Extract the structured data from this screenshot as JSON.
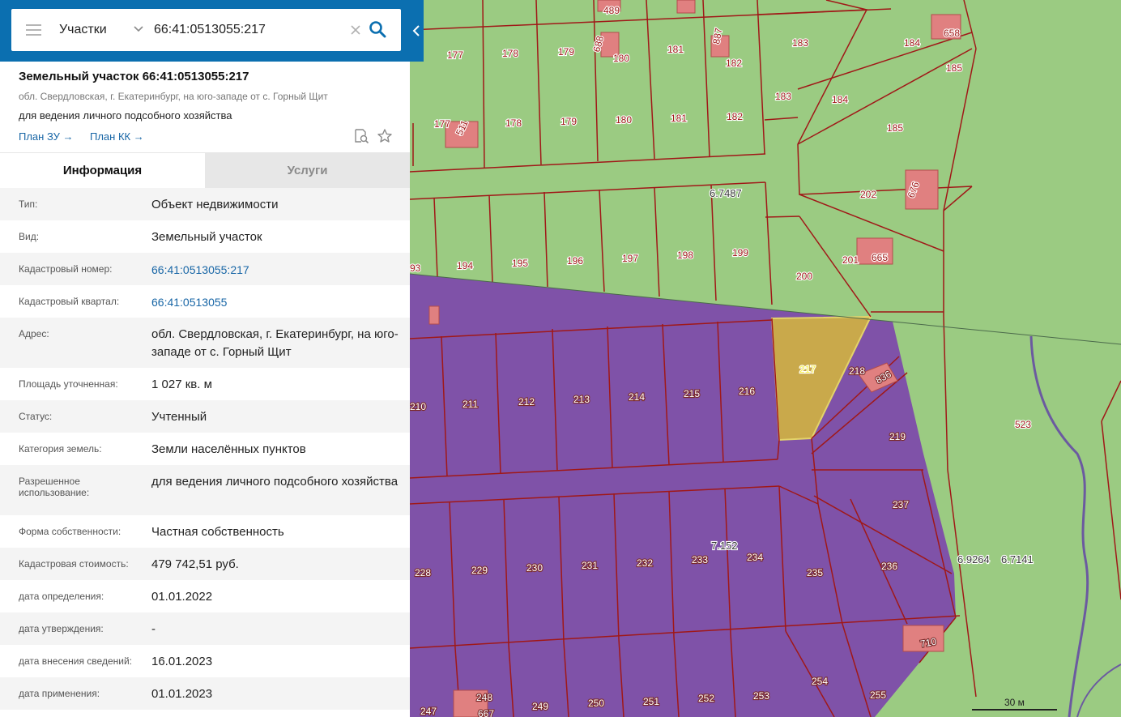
{
  "search": {
    "layer": "Участки",
    "query": "66:41:0513055:217"
  },
  "object": {
    "title": "Земельный участок 66:41:0513055:217",
    "address_short": "обл. Свердловская, г. Екатеринбург, на юго-западе от с. Горный Щит",
    "usage": "для ведения личного подсобного хозяйства",
    "plan_zu": "План ЗУ →",
    "plan_kk": "План КК →"
  },
  "tabs": {
    "info": "Информация",
    "services": "Услуги"
  },
  "rows": [
    {
      "label": "Тип:",
      "value": "Объект недвижимости"
    },
    {
      "label": "Вид:",
      "value": "Земельный участок"
    },
    {
      "label": "Кадастровый номер:",
      "value": "66:41:0513055:217",
      "link": true
    },
    {
      "label": "Кадастровый квартал:",
      "value": "66:41:0513055",
      "link": true
    },
    {
      "label": "Адрес:",
      "value": "обл. Свердловская, г. Екатеринбург, на юго-западе от с. Горный Щит"
    },
    {
      "label": "Площадь уточненная:",
      "value": "1 027 кв. м"
    },
    {
      "label": "Статус:",
      "value": "Учтенный"
    },
    {
      "label": "Категория земель:",
      "value": "Земли населённых пунктов"
    },
    {
      "label": "Разрешенное использование:",
      "value": "для ведения личного подсобного хозяйства"
    },
    {
      "label": "Форма собственности:",
      "value": "Частная собственность"
    },
    {
      "label": "Кадастровая стоимость:",
      "value": "479 742,51 руб."
    },
    {
      "label": "дата определения:",
      "value": "01.01.2022"
    },
    {
      "label": "дата утверждения:",
      "value": "-"
    },
    {
      "label": "дата внесения сведений:",
      "value": "16.01.2023"
    },
    {
      "label": "дата применения:",
      "value": "01.01.2023"
    }
  ],
  "map": {
    "scale_label": "30 м",
    "colors": {
      "green": "#9bcb82",
      "purple": "#7f52a8",
      "selected": "#c9a94b",
      "boundary": "#a01818",
      "building": "#e08080"
    },
    "quarters": [
      "6.7487",
      "7.152",
      "6.9264",
      "6.7141"
    ],
    "parcels": [
      "489",
      "658",
      "177",
      "178",
      "179",
      "688",
      "180",
      "181",
      "887",
      "182",
      "183",
      "184",
      "185",
      "511",
      "177",
      "178",
      "179",
      "180",
      "181",
      "182",
      "183",
      "184",
      "185",
      "202",
      "676",
      "194",
      "195",
      "196",
      "197",
      "198",
      "199",
      "200",
      "201",
      "665",
      "93",
      "217",
      "218",
      "836",
      "210",
      "211",
      "212",
      "213",
      "214",
      "215",
      "216",
      "219",
      "523",
      "237",
      "228",
      "229",
      "230",
      "231",
      "232",
      "233",
      "234",
      "235",
      "236",
      "710",
      "247",
      "248",
      "667",
      "249",
      "250",
      "251",
      "252",
      "253",
      "254",
      "255"
    ]
  }
}
